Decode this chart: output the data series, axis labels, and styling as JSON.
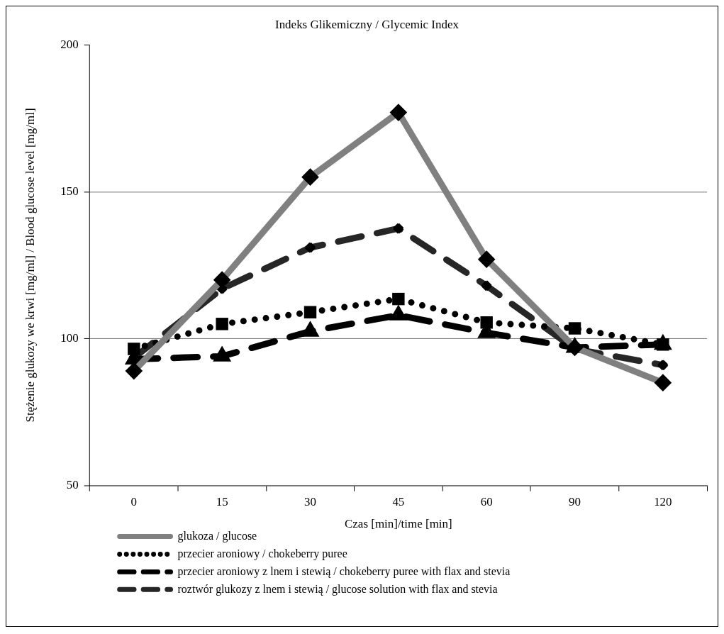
{
  "chart_data": {
    "type": "line",
    "title": "Indeks Glikemiczny / Glycemic Index",
    "xlabel": "Czas [min]/time [min]",
    "ylabel": "Stężenie glukozy we krwi [mg/ml] / Blood glucose level [mg/ml]",
    "categories": [
      "0",
      "15",
      "30",
      "45",
      "60",
      "90",
      "120"
    ],
    "ylim": [
      50,
      200
    ],
    "yticks": [
      50,
      100,
      150,
      200
    ],
    "grid": "y",
    "legend": "bottom",
    "series": [
      {
        "name": "glukoza / glucose",
        "color": "#808080",
        "line_style": "solid",
        "marker": "diamond",
        "values": [
          89,
          120,
          155,
          177,
          127,
          97,
          85
        ]
      },
      {
        "name": "przecier aroniowy / chokeberry puree",
        "color": "#000000",
        "line_style": "dotted",
        "marker": "square",
        "values": [
          96.5,
          105,
          109,
          113.5,
          105.5,
          103.5,
          98
        ]
      },
      {
        "name": "przecier aroniowy z lnem i stewią / chokeberry puree with flax and stevia",
        "color": "#000000",
        "line_style": "dashed",
        "marker": "triangle",
        "values": [
          93,
          94,
          102.5,
          108,
          102,
          97,
          98
        ]
      },
      {
        "name": "roztwór glukozy z lnem i stewią / glucose solution with flax and stevia",
        "color": "#262626",
        "line_style": "dashed",
        "marker": "cross",
        "values": [
          93.5,
          117,
          131,
          137.5,
          118,
          96.5,
          91
        ]
      }
    ]
  }
}
